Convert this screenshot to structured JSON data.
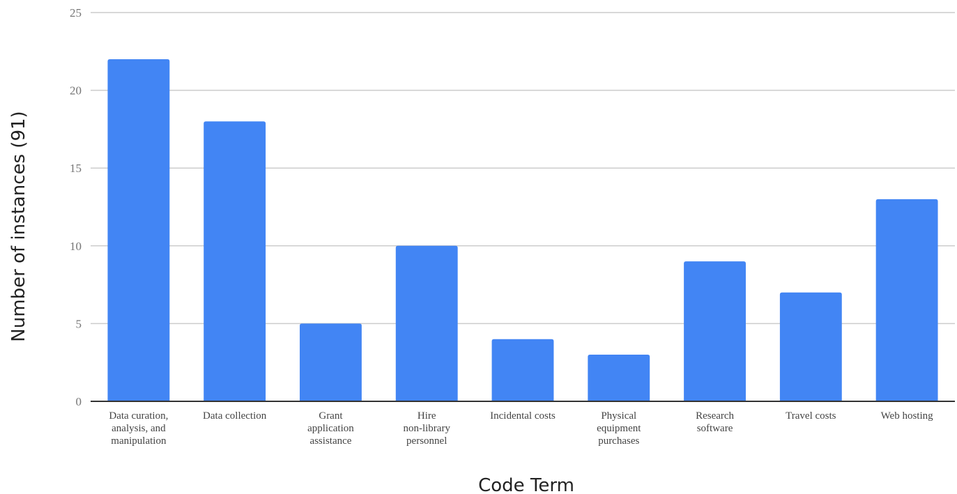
{
  "chart_data": {
    "type": "bar",
    "title": "",
    "xlabel": "Code Term",
    "ylabel": "Number of instances (91)",
    "ylim": [
      0,
      25
    ],
    "yticks": [
      0,
      5,
      10,
      15,
      20,
      25
    ],
    "grid": true,
    "legend": "none",
    "color": "#4285f4",
    "categories": [
      [
        "Data curation,",
        "analysis, and",
        "manipulation"
      ],
      [
        "Data collection"
      ],
      [
        "Grant",
        "application",
        "assistance"
      ],
      [
        "Hire",
        "non-library",
        "personnel"
      ],
      [
        "Incidental costs"
      ],
      [
        "Physical",
        "equipment",
        "purchases"
      ],
      [
        "Research",
        "software"
      ],
      [
        "Travel costs"
      ],
      [
        "Web hosting"
      ]
    ],
    "values": [
      22,
      18,
      5,
      10,
      4,
      3,
      9,
      7,
      13
    ]
  }
}
